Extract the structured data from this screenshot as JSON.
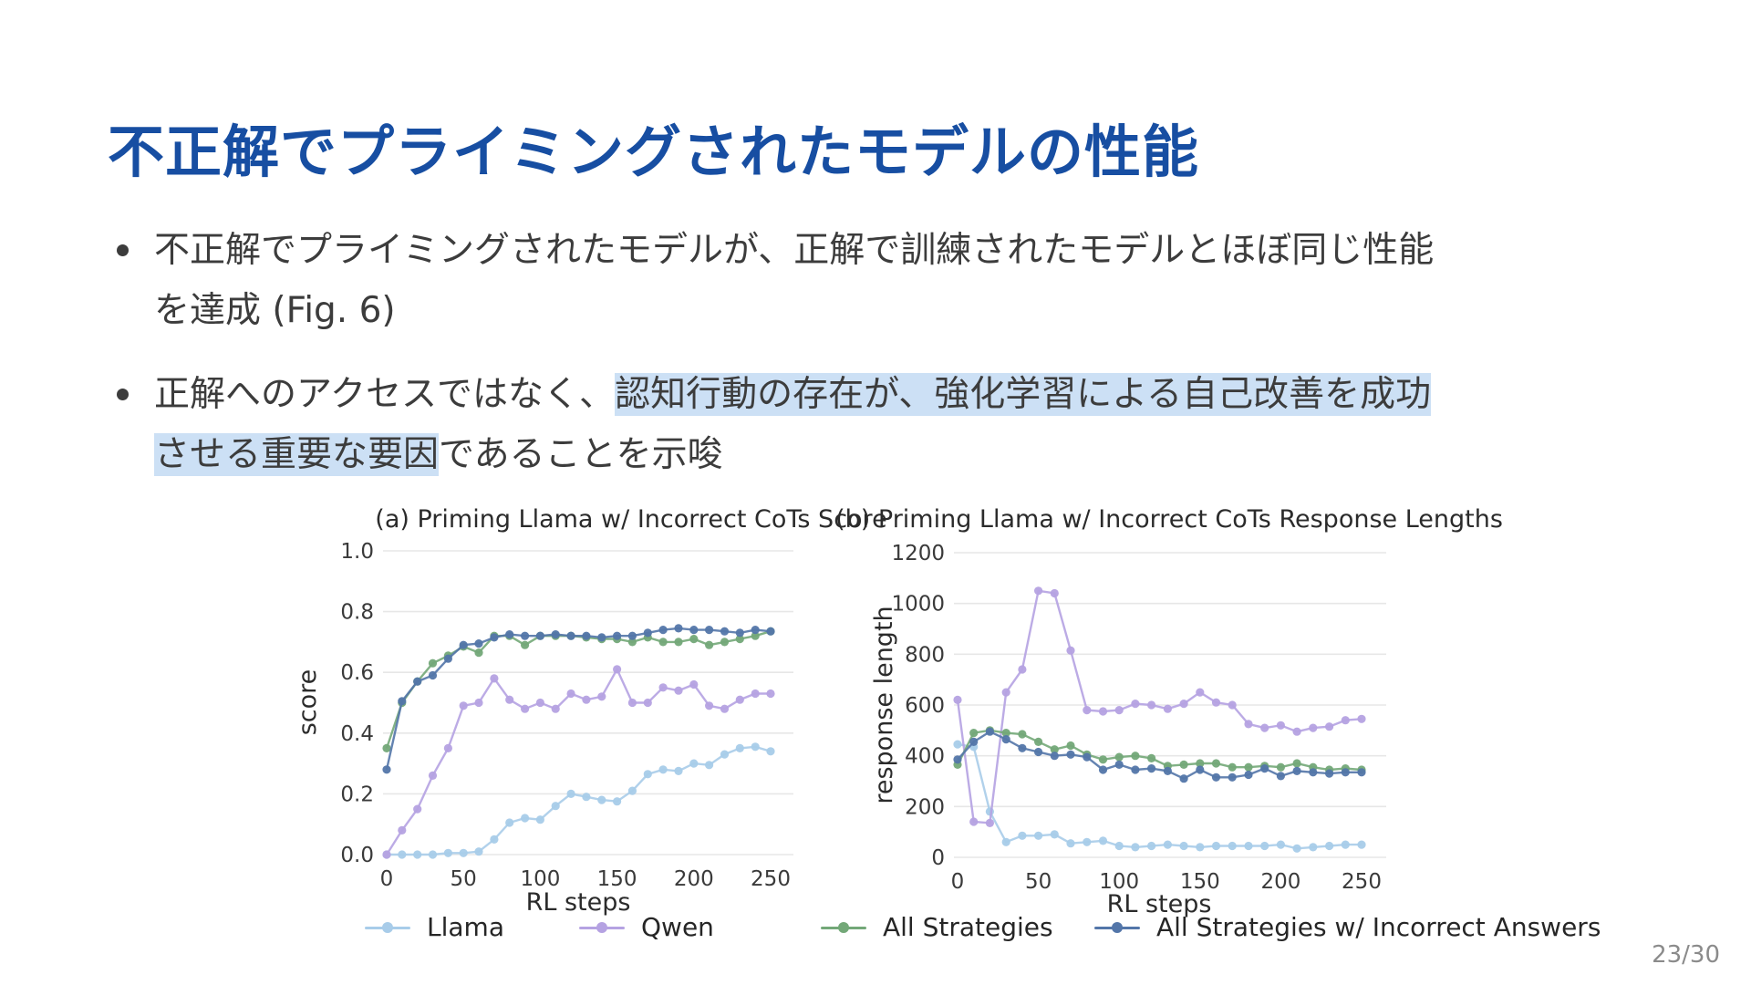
{
  "slide": {
    "title": "不正解でプライミングされたモデルの性能",
    "bullets": [
      {
        "lines": [
          [
            {
              "t": "不正解でプライミングされたモデルが、正解で訓練されたモデルとほぼ同じ性能",
              "h": false
            }
          ],
          [
            {
              "t": "を達成 (Fig. 6)",
              "h": false
            }
          ]
        ]
      },
      {
        "lines": [
          [
            {
              "t": "正解へのアクセスではなく、",
              "h": false
            },
            {
              "t": "認知行動の存在が、強化学習による自己改善を成功",
              "h": true
            }
          ],
          [
            {
              "t": "させる重要な要因",
              "h": true
            },
            {
              "t": "であることを示唆",
              "h": false
            }
          ]
        ]
      }
    ],
    "page_number": "23/30"
  },
  "colors": {
    "title_blue": "#174ea2",
    "highlight": "#cce0f5",
    "llama": "#a8cce9",
    "qwen": "#b5a2e2",
    "all_strategies": "#73a878",
    "all_strategies_incorrect": "#5376a9",
    "grid": "#e7e7e7",
    "tick_text": "#3a3a3a",
    "chart_text": "#2b2b2b"
  },
  "chart_data": [
    {
      "type": "line",
      "title": "(a) Priming Llama w/ Incorrect CoTs Score",
      "xlabel": "RL steps",
      "ylabel": "score",
      "x": [
        0,
        10,
        20,
        30,
        40,
        50,
        60,
        70,
        80,
        90,
        100,
        110,
        120,
        130,
        140,
        150,
        160,
        170,
        180,
        190,
        200,
        210,
        220,
        230,
        240,
        250
      ],
      "xticks": [
        0,
        50,
        100,
        150,
        200,
        250
      ],
      "yticks": [
        0,
        0.2,
        0.4,
        0.6,
        0.8,
        1.0
      ],
      "ytick_labels": [
        "0.0",
        "0.2",
        "0.4",
        "0.6",
        "0.8",
        "1.0"
      ],
      "ylim": [
        0,
        1.0
      ],
      "xlim": [
        0,
        250
      ],
      "grid": true,
      "series": [
        {
          "name": "Llama",
          "color": "#a8cce9",
          "values": [
            0.0,
            0.0,
            0.0,
            0.0,
            0.005,
            0.005,
            0.01,
            0.05,
            0.105,
            0.12,
            0.115,
            0.16,
            0.2,
            0.19,
            0.18,
            0.175,
            0.21,
            0.265,
            0.28,
            0.275,
            0.3,
            0.295,
            0.33,
            0.35,
            0.355,
            0.34
          ]
        },
        {
          "name": "Qwen",
          "color": "#b5a2e2",
          "values": [
            0.0,
            0.08,
            0.15,
            0.26,
            0.35,
            0.49,
            0.5,
            0.58,
            0.51,
            0.48,
            0.5,
            0.48,
            0.53,
            0.51,
            0.52,
            0.61,
            0.5,
            0.5,
            0.55,
            0.54,
            0.56,
            0.49,
            0.48,
            0.51,
            0.53,
            0.53
          ]
        },
        {
          "name": "All Strategies",
          "color": "#73a878",
          "values": [
            0.35,
            0.5,
            0.57,
            0.63,
            0.655,
            0.685,
            0.665,
            0.72,
            0.72,
            0.69,
            0.72,
            0.72,
            0.72,
            0.715,
            0.71,
            0.71,
            0.7,
            0.715,
            0.7,
            0.7,
            0.71,
            0.69,
            0.7,
            0.71,
            0.72,
            0.735
          ]
        },
        {
          "name": "All Strategies w/ Incorrect Answers",
          "color": "#5376a9",
          "values": [
            0.28,
            0.505,
            0.57,
            0.59,
            0.645,
            0.69,
            0.695,
            0.715,
            0.725,
            0.72,
            0.72,
            0.725,
            0.72,
            0.72,
            0.715,
            0.72,
            0.72,
            0.73,
            0.74,
            0.745,
            0.74,
            0.74,
            0.735,
            0.73,
            0.74,
            0.735
          ]
        }
      ]
    },
    {
      "type": "line",
      "title": "(b) Priming Llama w/ Incorrect CoTs Response Lengths",
      "xlabel": "RL steps",
      "ylabel": "response length",
      "x": [
        0,
        10,
        20,
        30,
        40,
        50,
        60,
        70,
        80,
        90,
        100,
        110,
        120,
        130,
        140,
        150,
        160,
        170,
        180,
        190,
        200,
        210,
        220,
        230,
        240,
        250
      ],
      "xticks": [
        0,
        50,
        100,
        150,
        200,
        250
      ],
      "yticks": [
        0,
        200,
        400,
        600,
        800,
        1000,
        1200
      ],
      "ytick_labels": [
        "0",
        "200",
        "400",
        "600",
        "800",
        "1000",
        "1200"
      ],
      "ylim": [
        0,
        1200
      ],
      "xlim": [
        0,
        250
      ],
      "grid": true,
      "series": [
        {
          "name": "Llama",
          "color": "#a8cce9",
          "values": [
            445,
            435,
            180,
            60,
            85,
            85,
            90,
            55,
            60,
            65,
            45,
            40,
            45,
            50,
            45,
            40,
            45,
            45,
            45,
            45,
            50,
            35,
            40,
            45,
            50,
            50
          ]
        },
        {
          "name": "Qwen",
          "color": "#b5a2e2",
          "values": [
            620,
            140,
            135,
            650,
            740,
            1050,
            1040,
            815,
            580,
            575,
            580,
            605,
            600,
            585,
            605,
            650,
            610,
            600,
            525,
            510,
            520,
            495,
            510,
            515,
            540,
            545
          ]
        },
        {
          "name": "All Strategies",
          "color": "#73a878",
          "values": [
            365,
            490,
            500,
            490,
            485,
            455,
            425,
            440,
            405,
            385,
            395,
            400,
            390,
            360,
            365,
            370,
            370,
            355,
            355,
            360,
            355,
            370,
            355,
            345,
            350,
            345
          ]
        },
        {
          "name": "All Strategies w/ Incorrect Answers",
          "color": "#5376a9",
          "values": [
            385,
            455,
            495,
            465,
            430,
            415,
            400,
            405,
            395,
            345,
            365,
            345,
            350,
            340,
            310,
            345,
            315,
            315,
            325,
            350,
            320,
            340,
            335,
            330,
            335,
            335
          ]
        }
      ]
    }
  ],
  "legend": {
    "items": [
      {
        "label": "Llama",
        "color": "#a8cce9"
      },
      {
        "label": "Qwen",
        "color": "#b5a2e2"
      },
      {
        "label": "All Strategies",
        "color": "#73a878"
      },
      {
        "label": "All Strategies w/ Incorrect Answers",
        "color": "#5376a9"
      }
    ]
  }
}
